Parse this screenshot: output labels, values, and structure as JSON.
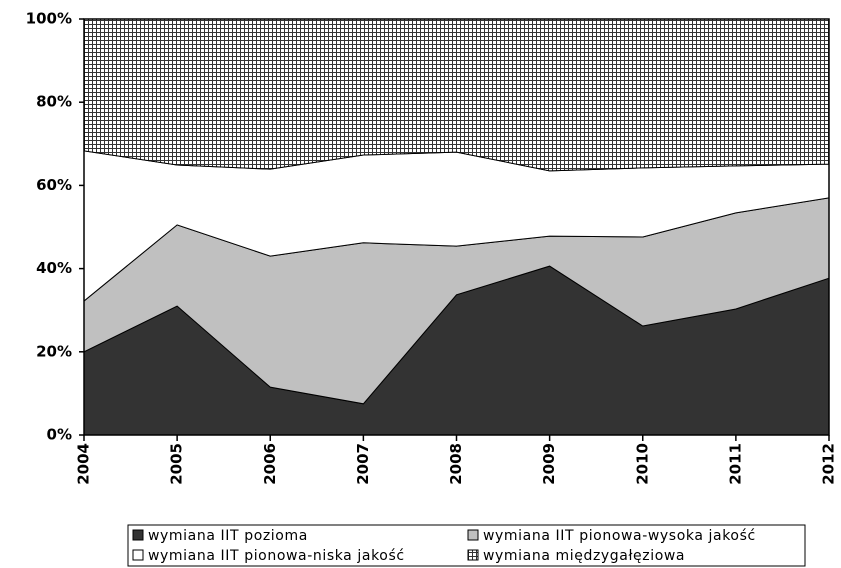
{
  "chart_data": {
    "type": "stacked_area",
    "categories": [
      "2004",
      "2005",
      "2006",
      "2007",
      "2008",
      "2009",
      "2010",
      "2011",
      "2012"
    ],
    "series": [
      {
        "name": "wymiana IIT pozioma",
        "color": "#333333",
        "values": [
          20,
          31,
          11.5,
          7.5,
          33.7,
          40.6,
          26.2,
          30.3,
          37.7
        ]
      },
      {
        "name": "wymiana IIT pionowa-wysoka jakość",
        "color": "#c0c0c0",
        "values": [
          12.2,
          19.5,
          31.5,
          38.7,
          11.7,
          7.2,
          21.4,
          23.1,
          19.3
        ]
      },
      {
        "name": "wymiana IIT pionowa-niska jakość",
        "color": "#ffffff",
        "values": [
          36.1,
          14.4,
          20.9,
          21.1,
          22.6,
          15.7,
          16.6,
          11.3,
          8.1
        ]
      },
      {
        "name": "wymiana międzygałęziowa",
        "color": "#ffffff",
        "pattern": "crosshatch",
        "values": [
          31.7,
          35.1,
          36.1,
          32.7,
          32.0,
          36.5,
          35.8,
          35.3,
          34.9
        ]
      }
    ],
    "ylim": [
      0,
      100
    ],
    "yticks": [
      {
        "value": 0,
        "label": "0%"
      },
      {
        "value": 20,
        "label": "20%"
      },
      {
        "value": 40,
        "label": "40%"
      },
      {
        "value": 60,
        "label": "60%"
      },
      {
        "value": 80,
        "label": "80%"
      },
      {
        "value": 100,
        "label": "100%"
      }
    ],
    "legend": "bottom"
  }
}
